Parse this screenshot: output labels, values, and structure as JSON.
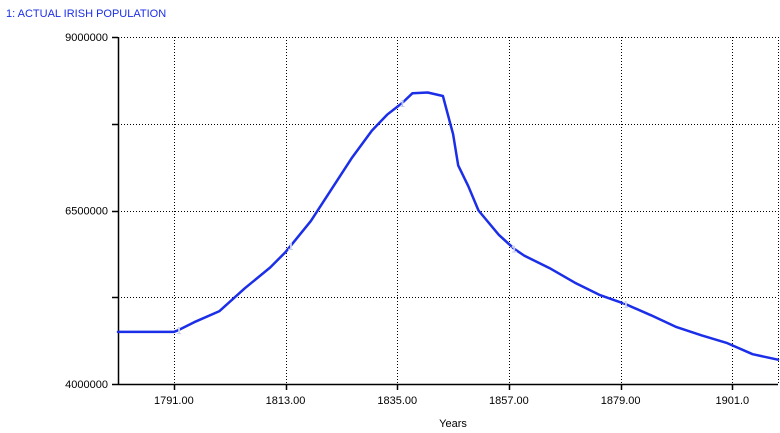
{
  "chart_data": {
    "type": "line",
    "title": "",
    "xlabel": "Years",
    "ylabel": "",
    "xlim": [
      1780,
      1910
    ],
    "ylim": [
      4000000,
      9000000
    ],
    "grid": true,
    "legend_position": "top-left",
    "x_ticks": [
      1791,
      1813,
      1835,
      1857,
      1879,
      1901
    ],
    "x_tick_labels": [
      "1791.00",
      "1813.00",
      "1835.00",
      "1857.00",
      "1879.00",
      "1901.0"
    ],
    "y_ticks": [
      4000000,
      6500000,
      9000000
    ],
    "y_tick_labels": [
      "4000000",
      "6500000",
      "9000000"
    ],
    "y_gridlines": [
      4000000,
      5250000,
      6500000,
      7750000,
      9000000
    ],
    "colors": {
      "series": "#1b2ee8",
      "legend_text": "#1b2ee8",
      "axis_tick_labels": "#1b2ee8",
      "axis": "#000000",
      "grid": "#000000",
      "marker": "#b9bee8"
    },
    "series": [
      {
        "name": "1: ACTUAL IRISH POPULATION",
        "marker_label": "1",
        "marker_x": [
          1792,
          1814,
          1836,
          1858,
          1880
        ],
        "x": [
          1780,
          1791,
          1792,
          1795,
          1800,
          1805,
          1810,
          1813,
          1814,
          1818,
          1822,
          1826,
          1830,
          1833,
          1836,
          1838,
          1841,
          1844,
          1846,
          1847,
          1849,
          1851,
          1855,
          1858,
          1860,
          1865,
          1870,
          1875,
          1880,
          1885,
          1890,
          1895,
          1900,
          1905,
          1910
        ],
        "y": [
          4750000,
          4750000,
          4780000,
          4890000,
          5050000,
          5380000,
          5680000,
          5900000,
          5990000,
          6350000,
          6800000,
          7250000,
          7650000,
          7880000,
          8050000,
          8190000,
          8200000,
          8150000,
          7600000,
          7150000,
          6850000,
          6500000,
          6150000,
          5950000,
          5850000,
          5670000,
          5460000,
          5280000,
          5150000,
          4990000,
          4820000,
          4700000,
          4590000,
          4430000,
          4350000
        ]
      }
    ]
  }
}
